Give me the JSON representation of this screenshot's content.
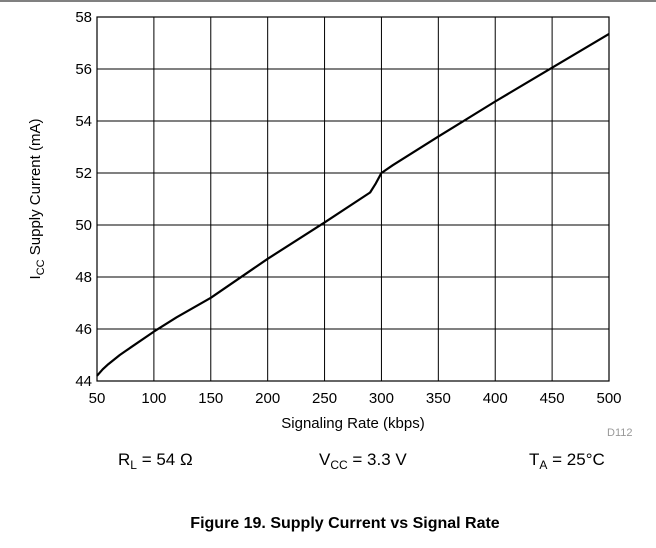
{
  "chart_data": {
    "type": "line",
    "xlabel": "Signaling Rate (kbps)",
    "ylabel": {
      "main": "I",
      "sub": "CC",
      "rest": " Supply Current (mA)"
    },
    "xlim": [
      50,
      500
    ],
    "ylim": [
      44,
      58
    ],
    "xticks": [
      50,
      100,
      150,
      200,
      250,
      300,
      350,
      400,
      450,
      500
    ],
    "yticks": [
      44,
      46,
      48,
      50,
      52,
      54,
      56,
      58
    ],
    "grid": true,
    "series": [
      {
        "x": [
          50,
          55,
          60,
          70,
          80,
          100,
          120,
          150,
          200,
          250,
          290,
          295,
          300,
          310,
          350,
          400,
          450,
          500
        ],
        "y": [
          44.2,
          44.45,
          44.65,
          45.0,
          45.3,
          45.9,
          46.45,
          47.2,
          48.7,
          50.1,
          51.25,
          51.6,
          52.0,
          52.3,
          53.4,
          54.75,
          56.05,
          57.35
        ]
      }
    ],
    "conditions": [
      {
        "main": "R",
        "sub": "L",
        "rest": " = 54 Ω"
      },
      {
        "main": "V",
        "sub": "CC",
        "rest": " = 3.3 V"
      },
      {
        "main": "T",
        "sub": "A",
        "rest": " = 25°C"
      }
    ],
    "code": "D112"
  },
  "caption": "Figure 19. Supply Current vs Signal Rate"
}
